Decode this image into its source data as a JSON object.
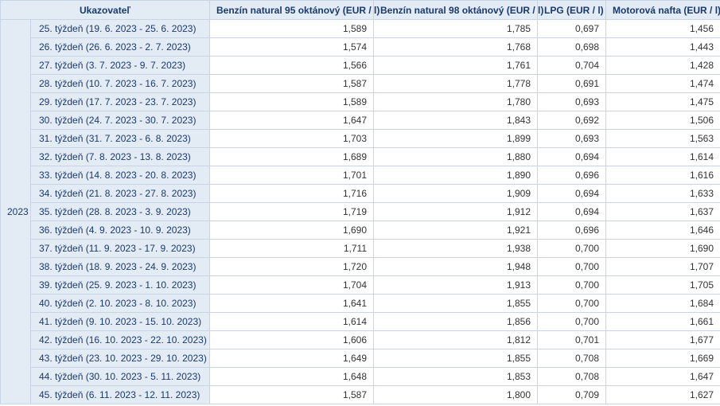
{
  "table": {
    "type": "table",
    "background_color": "#ffffff",
    "header_bg": "#e3ebf5",
    "header_color": "#1a3a6e",
    "border_color": "#c7d4e6",
    "value_text_color": "#333333",
    "font_family": "Arial",
    "font_size_pt": 9,
    "columns": [
      {
        "id": "ukazovatel",
        "label": "Ukazovateľ",
        "colspan": 2,
        "align": "center"
      },
      {
        "id": "benzin95",
        "label": "Benzín natural 95 oktánový (EUR / l)",
        "align": "right"
      },
      {
        "id": "benzin98",
        "label": "Benzín natural 98 oktánový (EUR / l)",
        "align": "right"
      },
      {
        "id": "lpg",
        "label": "LPG (EUR / l)",
        "align": "right"
      },
      {
        "id": "nafta",
        "label": "Motorová nafta (EUR / l)",
        "align": "right"
      }
    ],
    "year_label": "2023",
    "rows": [
      {
        "week": "25. týždeň (19. 6. 2023 - 25. 6. 2023)",
        "v": [
          "1,589",
          "1,785",
          "0,697",
          "1,456"
        ]
      },
      {
        "week": "26. týždeň (26. 6. 2023 - 2. 7. 2023)",
        "v": [
          "1,574",
          "1,768",
          "0,698",
          "1,443"
        ]
      },
      {
        "week": "27. týždeň (3. 7. 2023 - 9. 7. 2023)",
        "v": [
          "1,566",
          "1,761",
          "0,704",
          "1,428"
        ]
      },
      {
        "week": "28. týždeň (10. 7. 2023 - 16. 7. 2023)",
        "v": [
          "1,587",
          "1,778",
          "0,691",
          "1,474"
        ]
      },
      {
        "week": "29. týždeň (17. 7. 2023 - 23. 7. 2023)",
        "v": [
          "1,589",
          "1,780",
          "0,693",
          "1,475"
        ]
      },
      {
        "week": "30. týždeň (24. 7. 2023 - 30. 7. 2023)",
        "v": [
          "1,647",
          "1,843",
          "0,692",
          "1,506"
        ]
      },
      {
        "week": "31. týždeň (31. 7. 2023 - 6. 8. 2023)",
        "v": [
          "1,703",
          "1,899",
          "0,693",
          "1,563"
        ]
      },
      {
        "week": "32. týždeň (7. 8. 2023 - 13. 8. 2023)",
        "v": [
          "1,689",
          "1,880",
          "0,694",
          "1,614"
        ]
      },
      {
        "week": "33. týždeň (14. 8. 2023 - 20. 8. 2023)",
        "v": [
          "1,701",
          "1,890",
          "0,696",
          "1,616"
        ]
      },
      {
        "week": "34. týždeň (21. 8. 2023 - 27. 8. 2023)",
        "v": [
          "1,716",
          "1,909",
          "0,694",
          "1,633"
        ]
      },
      {
        "week": "35. týždeň (28. 8. 2023 - 3. 9. 2023)",
        "v": [
          "1,719",
          "1,912",
          "0,694",
          "1,637"
        ]
      },
      {
        "week": "36. týždeň (4. 9. 2023 - 10. 9. 2023)",
        "v": [
          "1,690",
          "1,921",
          "0,696",
          "1,646"
        ]
      },
      {
        "week": "37. týždeň (11. 9. 2023 - 17. 9. 2023)",
        "v": [
          "1,711",
          "1,938",
          "0,700",
          "1,690"
        ]
      },
      {
        "week": "38. týždeň (18. 9. 2023 - 24. 9. 2023)",
        "v": [
          "1,720",
          "1,948",
          "0,700",
          "1,707"
        ]
      },
      {
        "week": "39. týždeň (25. 9. 2023 - 1. 10. 2023)",
        "v": [
          "1,704",
          "1,913",
          "0,700",
          "1,705"
        ]
      },
      {
        "week": "40. týždeň (2. 10. 2023 - 8. 10. 2023)",
        "v": [
          "1,641",
          "1,855",
          "0,700",
          "1,684"
        ]
      },
      {
        "week": "41. týždeň (9. 10. 2023 - 15. 10. 2023)",
        "v": [
          "1,614",
          "1,856",
          "0,700",
          "1,661"
        ]
      },
      {
        "week": "42. týždeň (16. 10. 2023 - 22. 10. 2023)",
        "v": [
          "1,606",
          "1,812",
          "0,701",
          "1,677"
        ]
      },
      {
        "week": "43. týždeň (23. 10. 2023 - 29. 10. 2023)",
        "v": [
          "1,649",
          "1,855",
          "0,708",
          "1,669"
        ]
      },
      {
        "week": "44. týždeň (30. 10. 2023 - 5. 11. 2023)",
        "v": [
          "1,648",
          "1,853",
          "0,708",
          "1,647"
        ]
      },
      {
        "week": "45. týždeň (6. 11. 2023 - 12. 11. 2023)",
        "v": [
          "1,587",
          "1,800",
          "0,709",
          "1,627"
        ]
      }
    ]
  }
}
